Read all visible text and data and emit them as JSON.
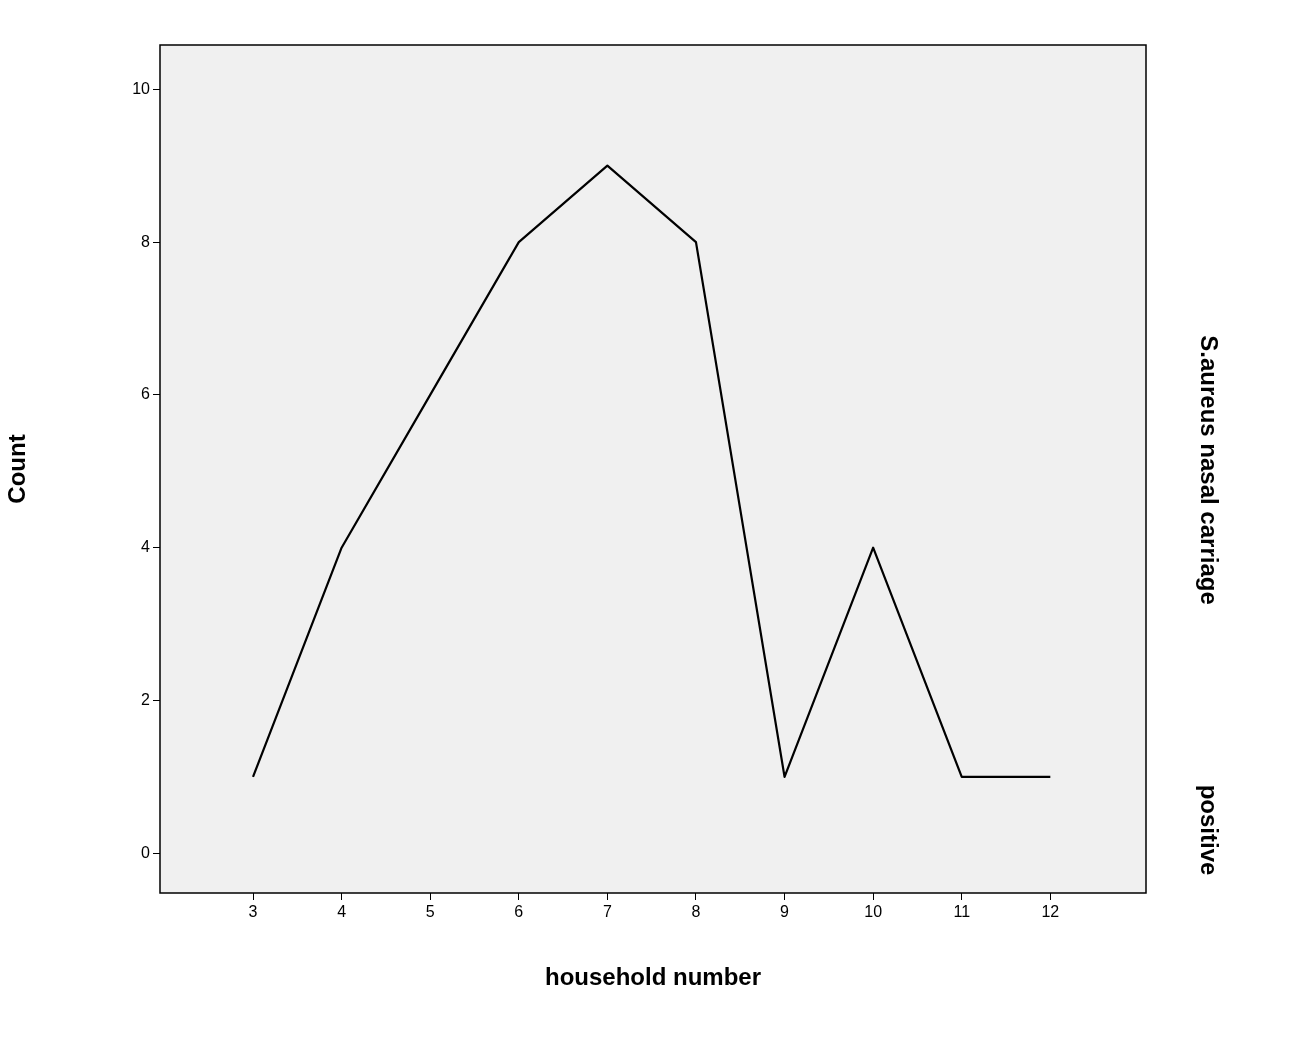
{
  "chart_data": {
    "type": "line",
    "xlabel": "household number",
    "ylabel": "Count",
    "y2label": "S.aureus nasal carriage",
    "annotations": [
      "positive"
    ],
    "x": [
      3,
      4,
      5,
      6,
      7,
      8,
      9,
      10,
      11,
      12
    ],
    "series": [
      {
        "color": "#000000",
        "values": [
          1,
          4,
          6,
          8,
          9,
          8,
          1,
          4,
          1,
          1
        ]
      }
    ],
    "xlim": [
      1.95,
      13.08
    ],
    "xticks": [
      3,
      4,
      5,
      6,
      7,
      8,
      9,
      10,
      11,
      12
    ],
    "ylim": [
      -0.52,
      10.58
    ],
    "yticks": [
      0,
      2,
      4,
      6,
      8,
      10
    ],
    "grid": false,
    "legend": false,
    "marker": "none",
    "line_style": "solid"
  }
}
